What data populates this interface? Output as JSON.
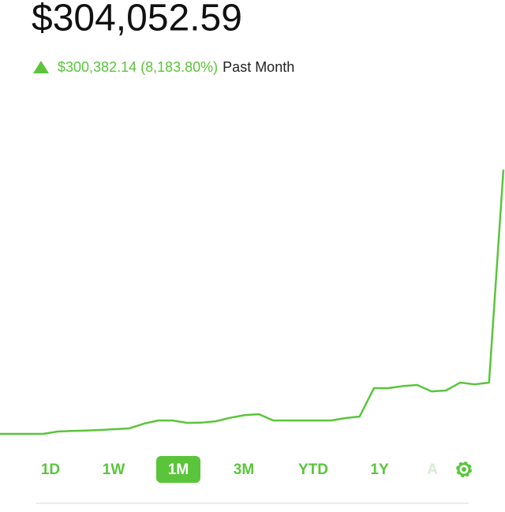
{
  "header": {
    "price": "$304,052.59",
    "change": "$300,382.14 (8,183.80%)",
    "period": "Past Month"
  },
  "chart_data": {
    "type": "line",
    "color": "#5ac53b",
    "values": [
      3670,
      3670,
      3670,
      3670,
      6360,
      7000,
      7500,
      8160,
      9000,
      9950,
      15300,
      18920,
      18920,
      16230,
      16500,
      18000,
      22000,
      25000,
      26100,
      18920,
      18920,
      18920,
      18920,
      18920,
      21600,
      23400,
      55700,
      55700,
      58000,
      59300,
      52000,
      53000,
      62000,
      60000,
      62000,
      304052.59
    ]
  },
  "tabs": [
    "1D",
    "1W",
    "1M",
    "3M",
    "YTD",
    "1Y",
    "A"
  ],
  "selected_tab": 2
}
